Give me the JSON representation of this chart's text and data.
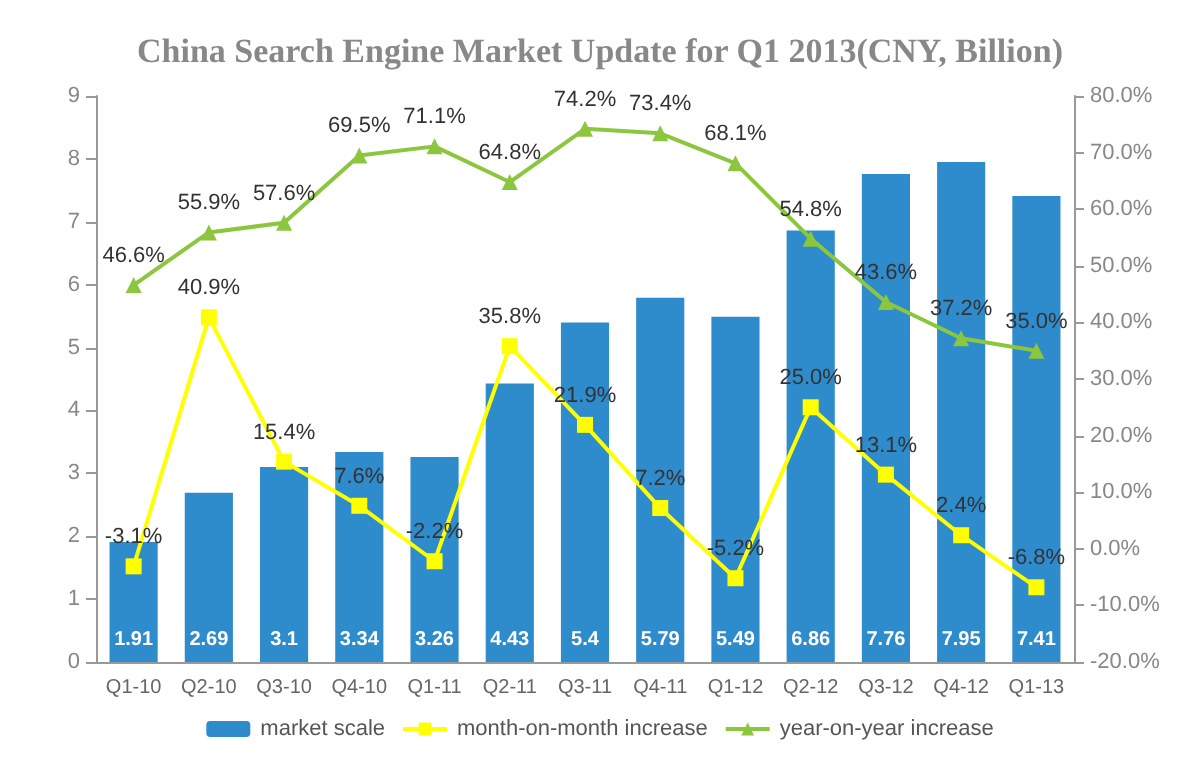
{
  "chart_data": {
    "type": "bar",
    "title": "China Search Engine Market Update for Q1 2013(CNY, Billion)",
    "categories": [
      "Q1-10",
      "Q2-10",
      "Q3-10",
      "Q4-10",
      "Q1-11",
      "Q2-11",
      "Q3-11",
      "Q4-11",
      "Q1-12",
      "Q2-12",
      "Q3-12",
      "Q4-12",
      "Q1-13"
    ],
    "series": [
      {
        "name": "market scale",
        "color": "#2e8bcc",
        "data_labels": true,
        "values": [
          1.91,
          2.69,
          3.1,
          3.34,
          3.26,
          4.43,
          5.4,
          5.79,
          5.49,
          6.86,
          7.76,
          7.95,
          7.41
        ]
      },
      {
        "name": "month-on-month increase",
        "type": "line",
        "axis": "y2",
        "marker": "square",
        "color": "#ffff00",
        "values": [
          -3.1,
          40.9,
          15.4,
          7.6,
          -2.2,
          35.8,
          21.9,
          7.2,
          -5.2,
          25.0,
          13.1,
          2.4,
          -6.8
        ],
        "value_labels": [
          "-3.1%",
          "40.9%",
          "15.4%",
          "7.6%",
          "-2.2%",
          "35.8%",
          "21.9%",
          "7.2%",
          "-5.2%",
          "25.0%",
          "13.1%",
          "2.4%",
          "-6.8%"
        ]
      },
      {
        "name": "year-on-year increase",
        "type": "line",
        "axis": "y2",
        "marker": "triangle",
        "color": "#8cc63f",
        "values": [
          46.6,
          55.9,
          57.6,
          69.5,
          71.1,
          64.8,
          74.2,
          73.4,
          68.1,
          54.8,
          43.6,
          37.2,
          35.0
        ],
        "value_labels": [
          "46.6%",
          "55.9%",
          "57.6%",
          "69.5%",
          "71.1%",
          "64.8%",
          "74.2%",
          "73.4%",
          "68.1%",
          "54.8%",
          "43.6%",
          "37.2%",
          "35.0%"
        ]
      }
    ],
    "ylim": [
      0,
      9
    ],
    "yticks": [
      0,
      1,
      2,
      3,
      4,
      5,
      6,
      7,
      8,
      9
    ],
    "y2lim": [
      -20,
      80
    ],
    "y2ticks": [
      {
        "value": -20,
        "label": "-20.0%"
      },
      {
        "value": -10,
        "label": "-10.0%"
      },
      {
        "value": 0,
        "label": "0.0%"
      },
      {
        "value": 10,
        "label": "10.0%"
      },
      {
        "value": 20,
        "label": "20.0%"
      },
      {
        "value": 30,
        "label": "30.0%"
      },
      {
        "value": 40,
        "label": "40.0%"
      },
      {
        "value": 50,
        "label": "50.0%"
      },
      {
        "value": 60,
        "label": "60.0%"
      },
      {
        "value": 70,
        "label": "70.0%"
      },
      {
        "value": 80,
        "label": "80.0%"
      }
    ],
    "grid": false,
    "legend": "bottom"
  }
}
